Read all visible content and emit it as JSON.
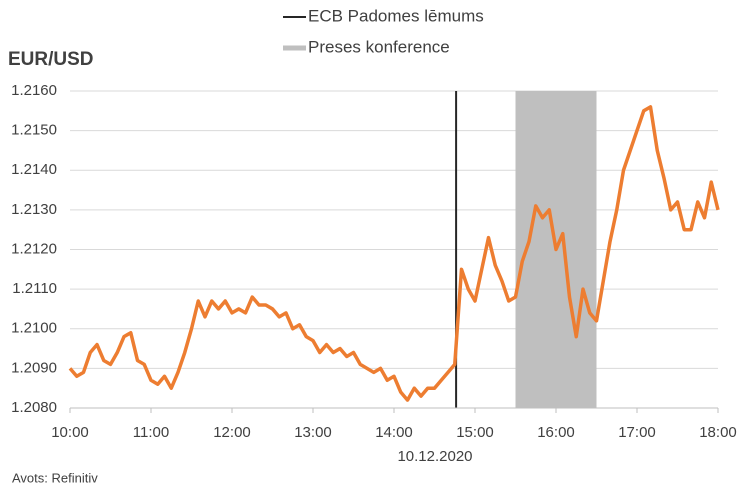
{
  "chart_data": {
    "type": "line",
    "title": "EUR/USD",
    "xlabel": "10.12.2020",
    "source": "Avots: Refinitiv",
    "color": "#ed7d31",
    "grid": true,
    "x": [
      "10:00",
      "10:05",
      "10:10",
      "10:15",
      "10:20",
      "10:25",
      "10:30",
      "10:35",
      "10:40",
      "10:45",
      "10:50",
      "10:55",
      "11:00",
      "11:05",
      "11:10",
      "11:15",
      "11:20",
      "11:25",
      "11:30",
      "11:35",
      "11:40",
      "11:45",
      "11:50",
      "11:55",
      "12:00",
      "12:05",
      "12:10",
      "12:15",
      "12:20",
      "12:25",
      "12:30",
      "12:35",
      "12:40",
      "12:45",
      "12:50",
      "12:55",
      "13:00",
      "13:05",
      "13:10",
      "13:15",
      "13:20",
      "13:25",
      "13:30",
      "13:35",
      "13:40",
      "13:45",
      "13:50",
      "13:55",
      "14:00",
      "14:05",
      "14:10",
      "14:15",
      "14:20",
      "14:25",
      "14:30",
      "14:35",
      "14:40",
      "14:45",
      "14:50",
      "14:55",
      "15:00",
      "15:05",
      "15:10",
      "15:15",
      "15:20",
      "15:25",
      "15:30",
      "15:35",
      "15:40",
      "15:45",
      "15:50",
      "15:55",
      "16:00",
      "16:05",
      "16:10",
      "16:15",
      "16:20",
      "16:25",
      "16:30",
      "16:35",
      "16:40",
      "16:45",
      "16:50",
      "16:55",
      "17:00",
      "17:05",
      "17:10",
      "17:15",
      "17:20",
      "17:25",
      "17:30",
      "17:35",
      "17:40",
      "17:45",
      "17:50",
      "17:55",
      "18:00"
    ],
    "values": [
      1.209,
      1.2088,
      1.2089,
      1.2094,
      1.2096,
      1.2092,
      1.2091,
      1.2094,
      1.2098,
      1.2099,
      1.2092,
      1.2091,
      1.2087,
      1.2086,
      1.2088,
      1.2085,
      1.2089,
      1.2094,
      1.21,
      1.2107,
      1.2103,
      1.2107,
      1.2105,
      1.2107,
      1.2104,
      1.2105,
      1.2104,
      1.2108,
      1.2106,
      1.2106,
      1.2105,
      1.2103,
      1.2104,
      1.21,
      1.2101,
      1.2098,
      1.2097,
      1.2094,
      1.2096,
      1.2094,
      1.2095,
      1.2093,
      1.2094,
      1.2091,
      1.209,
      1.2089,
      1.209,
      1.2087,
      1.2088,
      1.2084,
      1.2082,
      1.2085,
      1.2083,
      1.2085,
      1.2085,
      1.2087,
      1.2089,
      1.2091,
      1.2115,
      1.211,
      1.2107,
      1.2115,
      1.2123,
      1.2116,
      1.2112,
      1.2107,
      1.2108,
      1.2117,
      1.2122,
      1.2131,
      1.2128,
      1.213,
      1.212,
      1.2124,
      1.2108,
      1.2098,
      1.211,
      1.2104,
      1.2102,
      1.2112,
      1.2122,
      1.213,
      1.214,
      1.2145,
      1.215,
      1.2155,
      1.2156,
      1.2145,
      1.2138,
      1.213,
      1.2132,
      1.2125,
      1.2125,
      1.2132,
      1.2128,
      1.2137,
      1.213
    ],
    "xlim": [
      "10:00",
      "18:00"
    ],
    "xticks": [
      "10:00",
      "11:00",
      "12:00",
      "13:00",
      "14:00",
      "15:00",
      "16:00",
      "17:00",
      "18:00"
    ],
    "ylim": [
      1.208,
      1.216
    ],
    "yticks": [
      {
        "value": 1.208,
        "label": "1.2080"
      },
      {
        "value": 1.209,
        "label": "1.2090"
      },
      {
        "value": 1.21,
        "label": "1.2100"
      },
      {
        "value": 1.211,
        "label": "1.2110"
      },
      {
        "value": 1.212,
        "label": "1.2120"
      },
      {
        "value": 1.213,
        "label": "1.2130"
      },
      {
        "value": 1.214,
        "label": "1.2140"
      },
      {
        "value": 1.215,
        "label": "1.2150"
      },
      {
        "value": 1.216,
        "label": "1.2160"
      }
    ],
    "markers": [
      {
        "name": "ECB Padomes lēmums",
        "kind": "vline",
        "x": "14:46",
        "color": "#262626"
      },
      {
        "name": "Preses konference",
        "kind": "band",
        "x": [
          "15:30",
          "16:30"
        ],
        "color": "#bfbfbf"
      }
    ]
  }
}
